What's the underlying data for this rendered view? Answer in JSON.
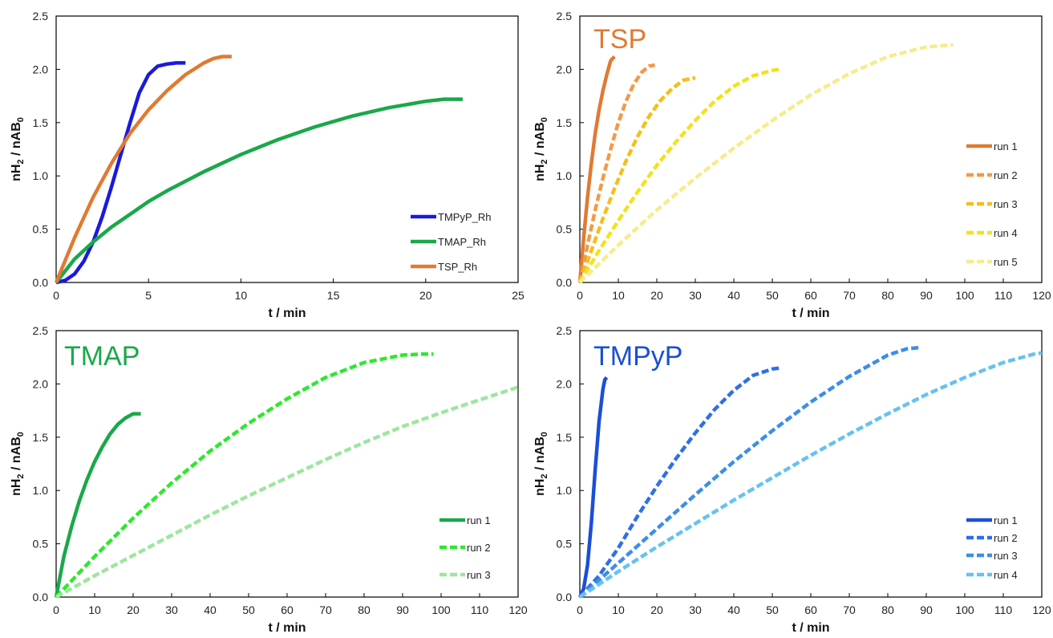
{
  "chart_data": [
    {
      "type": "line",
      "title": "",
      "xlabel": "t / min",
      "ylabel_main": "nH",
      "ylabel_sub1": "2",
      "ylabel_mid": " / nAB",
      "ylabel_sub2": "0",
      "xlim": [
        0,
        25
      ],
      "ylim": [
        0,
        2.5
      ],
      "xticks": [
        "0",
        "5",
        "10",
        "15",
        "20",
        "25"
      ],
      "yticks": [
        "0.0",
        "0.5",
        "1.0",
        "1.5",
        "2.0",
        "2.5"
      ],
      "grid": false,
      "legend_position": "bottom-right",
      "series": [
        {
          "name": "TMPyP_Rh",
          "color": "#1a1adb",
          "dash": "solid",
          "x": [
            0,
            0.5,
            1,
            1.5,
            2,
            2.5,
            3,
            3.5,
            4,
            4.5,
            5,
            5.5,
            6,
            6.5,
            7
          ],
          "y": [
            0,
            0.02,
            0.08,
            0.2,
            0.38,
            0.62,
            0.9,
            1.2,
            1.5,
            1.78,
            1.95,
            2.03,
            2.05,
            2.06,
            2.06
          ]
        },
        {
          "name": "TMAP_Rh",
          "color": "#1aa84a",
          "dash": "solid",
          "x": [
            0,
            1,
            2,
            3,
            4,
            5,
            6,
            8,
            10,
            12,
            14,
            16,
            18,
            20,
            21,
            22
          ],
          "y": [
            0,
            0.22,
            0.38,
            0.52,
            0.64,
            0.76,
            0.86,
            1.04,
            1.2,
            1.34,
            1.46,
            1.56,
            1.64,
            1.7,
            1.72,
            1.72
          ]
        },
        {
          "name": "TSP_Rh",
          "color": "#e07a33",
          "dash": "solid",
          "x": [
            0,
            1,
            2,
            3,
            4,
            5,
            6,
            7,
            8,
            8.5,
            9,
            9.5
          ],
          "y": [
            0,
            0.42,
            0.8,
            1.12,
            1.4,
            1.62,
            1.8,
            1.95,
            2.06,
            2.1,
            2.12,
            2.12
          ]
        }
      ]
    },
    {
      "type": "line",
      "title": "TSP",
      "title_color": "#e07a33",
      "xlabel": "t / min",
      "ylabel_main": "nH",
      "ylabel_sub1": "2",
      "ylabel_mid": " / nAB",
      "ylabel_sub2": "0",
      "xlim": [
        0,
        120
      ],
      "ylim": [
        0,
        2.5
      ],
      "xticks": [
        "0",
        "10",
        "20",
        "30",
        "40",
        "50",
        "60",
        "70",
        "80",
        "90",
        "100",
        "110",
        "120"
      ],
      "yticks": [
        "0.0",
        "0.5",
        "1.0",
        "1.5",
        "2.0",
        "2.5"
      ],
      "grid": false,
      "legend_position": "right",
      "series": [
        {
          "name": "run 1",
          "color": "#e07a33",
          "dash": "solid",
          "x": [
            0,
            1,
            2,
            3,
            4,
            5,
            6,
            7,
            8,
            9
          ],
          "y": [
            0,
            0.42,
            0.8,
            1.12,
            1.4,
            1.62,
            1.8,
            1.95,
            2.08,
            2.12
          ]
        },
        {
          "name": "run 2",
          "color": "#f29a47",
          "dash": "dashed",
          "x": [
            0,
            2,
            4,
            6,
            8,
            10,
            12,
            14,
            16,
            18,
            19.5
          ],
          "y": [
            0,
            0.35,
            0.68,
            0.98,
            1.25,
            1.5,
            1.7,
            1.86,
            1.97,
            2.03,
            2.04
          ]
        },
        {
          "name": "run 3",
          "color": "#f4bf1c",
          "dash": "dashed",
          "x": [
            0,
            3,
            6,
            9,
            12,
            15,
            18,
            21,
            24,
            27,
            30
          ],
          "y": [
            0,
            0.3,
            0.6,
            0.88,
            1.14,
            1.37,
            1.56,
            1.71,
            1.82,
            1.9,
            1.92
          ]
        },
        {
          "name": "run 4",
          "color": "#f2e21c",
          "dash": "dashed",
          "x": [
            0,
            5,
            10,
            15,
            20,
            25,
            30,
            35,
            40,
            45,
            50,
            52
          ],
          "y": [
            0,
            0.3,
            0.58,
            0.85,
            1.1,
            1.32,
            1.52,
            1.7,
            1.84,
            1.94,
            1.99,
            2.0
          ]
        },
        {
          "name": "run 5",
          "color": "#f5ec8c",
          "dash": "dashed",
          "x": [
            0,
            10,
            20,
            30,
            40,
            50,
            60,
            70,
            80,
            90,
            97
          ],
          "y": [
            0,
            0.35,
            0.68,
            0.98,
            1.26,
            1.52,
            1.76,
            1.96,
            2.12,
            2.21,
            2.23
          ]
        }
      ]
    },
    {
      "type": "line",
      "title": "TMAP",
      "title_color": "#1aa84a",
      "xlabel": "t / min",
      "ylabel_main": "nH",
      "ylabel_sub1": "2",
      "ylabel_mid": " / nAB",
      "ylabel_sub2": "0",
      "xlim": [
        0,
        120
      ],
      "ylim": [
        0,
        2.5
      ],
      "xticks": [
        "0",
        "10",
        "20",
        "30",
        "40",
        "50",
        "60",
        "70",
        "80",
        "90",
        "100",
        "110",
        "120"
      ],
      "yticks": [
        "0.0",
        "0.5",
        "1.0",
        "1.5",
        "2.0",
        "2.5"
      ],
      "grid": false,
      "legend_position": "bottom-right",
      "series": [
        {
          "name": "run 1",
          "color": "#1aa84a",
          "dash": "solid",
          "x": [
            0,
            2,
            4,
            6,
            8,
            10,
            12,
            14,
            16,
            18,
            20,
            22
          ],
          "y": [
            0,
            0.38,
            0.66,
            0.9,
            1.1,
            1.27,
            1.41,
            1.53,
            1.62,
            1.68,
            1.72,
            1.72
          ]
        },
        {
          "name": "run 2",
          "color": "#2ee82e",
          "dash": "dashed",
          "x": [
            0,
            10,
            20,
            30,
            40,
            50,
            60,
            70,
            80,
            90,
            95,
            98
          ],
          "y": [
            0,
            0.38,
            0.74,
            1.07,
            1.37,
            1.63,
            1.86,
            2.06,
            2.2,
            2.27,
            2.28,
            2.28
          ]
        },
        {
          "name": "run 3",
          "color": "#9ee69e",
          "dash": "dashed",
          "x": [
            0,
            10,
            20,
            30,
            40,
            50,
            60,
            70,
            80,
            90,
            100,
            110,
            120
          ],
          "y": [
            0,
            0.2,
            0.39,
            0.58,
            0.77,
            0.95,
            1.12,
            1.29,
            1.45,
            1.6,
            1.73,
            1.85,
            1.97
          ]
        }
      ]
    },
    {
      "type": "line",
      "title": "TMPyP",
      "title_color": "#1a4fd6",
      "xlabel": "t / min",
      "ylabel_main": "nH",
      "ylabel_sub1": "2",
      "ylabel_mid": " / nAB",
      "ylabel_sub2": "0",
      "xlim": [
        0,
        120
      ],
      "ylim": [
        0,
        2.5
      ],
      "xticks": [
        "0",
        "10",
        "20",
        "30",
        "40",
        "50",
        "60",
        "70",
        "80",
        "90",
        "100",
        "110",
        "120"
      ],
      "yticks": [
        "0.0",
        "0.5",
        "1.0",
        "1.5",
        "2.0",
        "2.5"
      ],
      "grid": false,
      "legend_position": "bottom-right",
      "series": [
        {
          "name": "run 1",
          "color": "#1a4fd6",
          "dash": "solid",
          "x": [
            0,
            1,
            2,
            3,
            4,
            5,
            6,
            6.5,
            7
          ],
          "y": [
            0,
            0.08,
            0.3,
            0.7,
            1.2,
            1.65,
            1.95,
            2.04,
            2.06
          ]
        },
        {
          "name": "run 2",
          "color": "#2f6fe8",
          "dash": "dashed",
          "x": [
            0,
            5,
            10,
            15,
            20,
            25,
            30,
            35,
            40,
            45,
            50,
            52
          ],
          "y": [
            0,
            0.2,
            0.46,
            0.76,
            1.04,
            1.3,
            1.54,
            1.76,
            1.94,
            2.08,
            2.14,
            2.15
          ]
        },
        {
          "name": "run 3",
          "color": "#3d8ee6",
          "dash": "dashed",
          "x": [
            0,
            10,
            20,
            30,
            40,
            50,
            60,
            70,
            80,
            85,
            88
          ],
          "y": [
            0,
            0.32,
            0.64,
            0.96,
            1.27,
            1.56,
            1.83,
            2.07,
            2.27,
            2.33,
            2.34
          ]
        },
        {
          "name": "run 4",
          "color": "#66c2f0",
          "dash": "dashed",
          "x": [
            0,
            10,
            20,
            30,
            40,
            50,
            60,
            70,
            80,
            90,
            100,
            110,
            118,
            120
          ],
          "y": [
            0,
            0.24,
            0.47,
            0.69,
            0.91,
            1.12,
            1.33,
            1.53,
            1.72,
            1.9,
            2.06,
            2.2,
            2.28,
            2.29
          ]
        }
      ]
    }
  ]
}
